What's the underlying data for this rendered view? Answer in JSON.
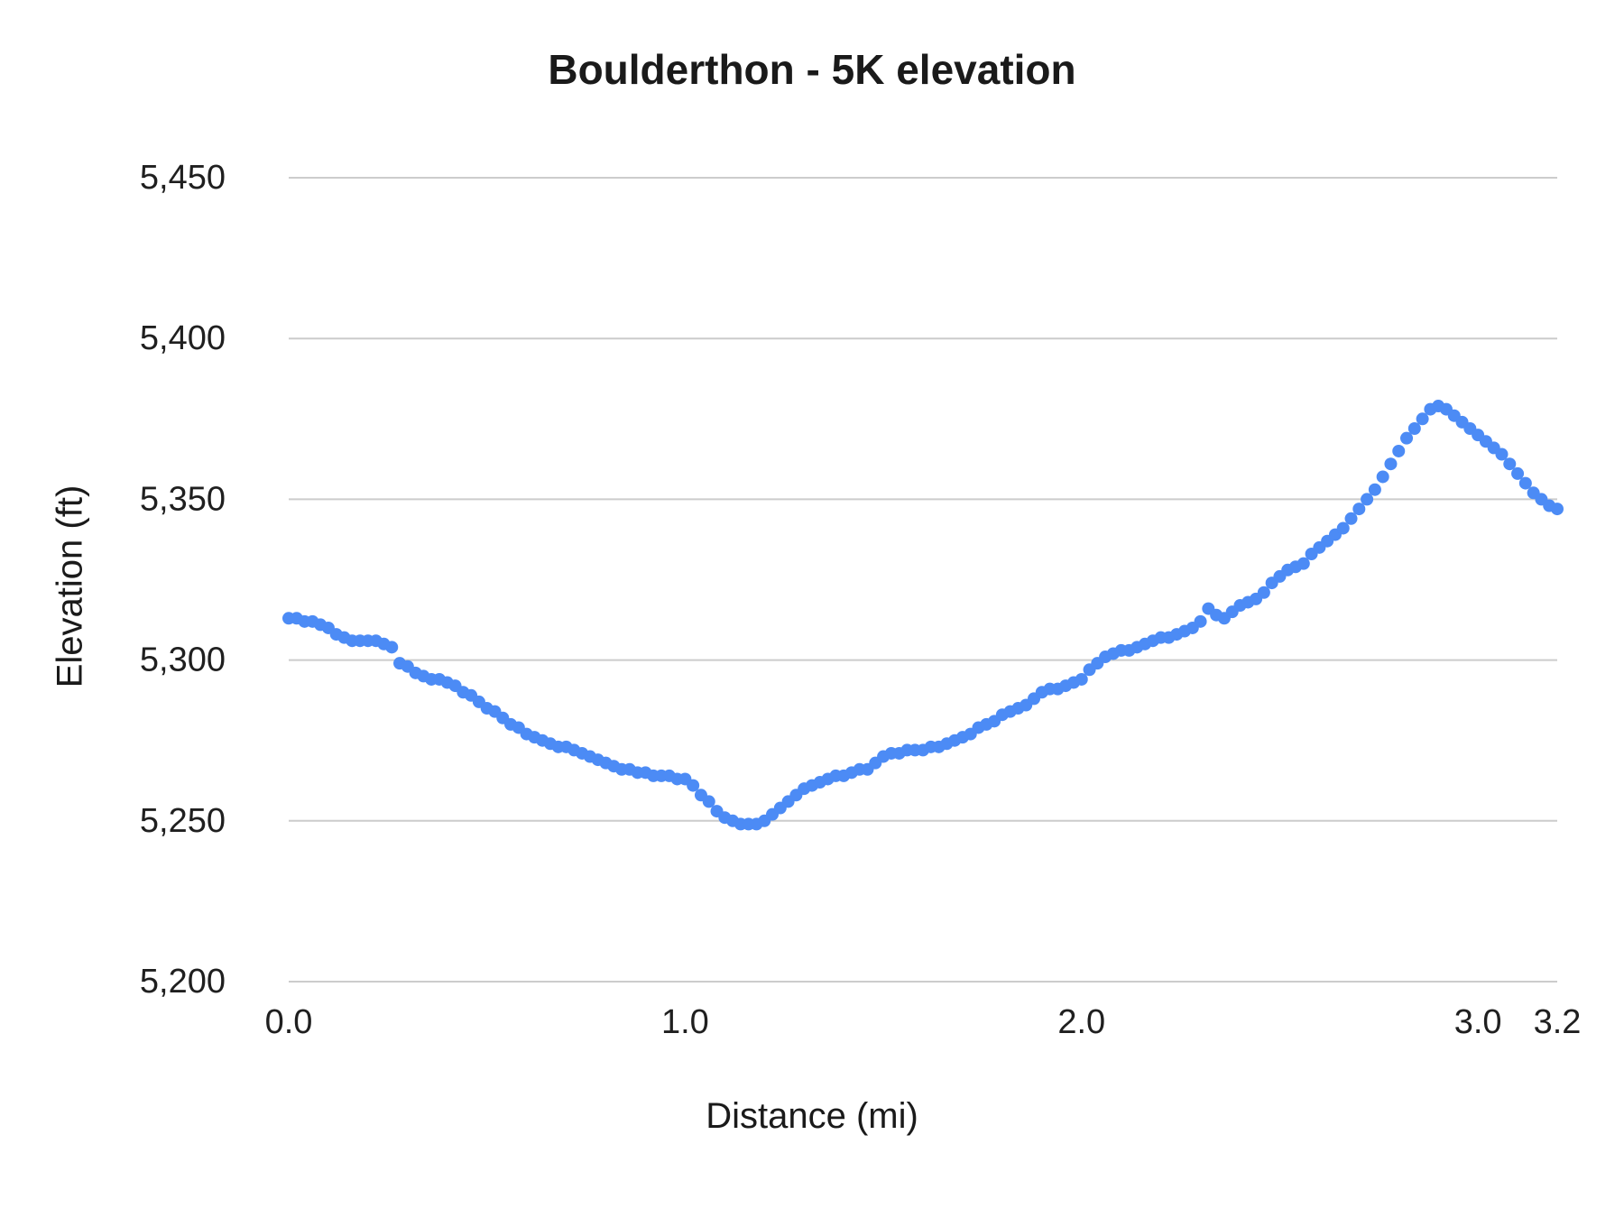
{
  "page": {
    "background": "#ffffff"
  },
  "chart_data": {
    "type": "scatter",
    "title": "Boulderthon - 5K elevation",
    "xlabel": "Distance (mi)",
    "ylabel": "Elevation (ft)",
    "xlim": [
      0,
      3.2
    ],
    "ylim": [
      5200,
      5450
    ],
    "grid": "horizontal",
    "legend": "none",
    "point_color": "#4c8bf5",
    "grid_color": "#cccccc",
    "text_color": "#1f1f1f",
    "x_ticks": [
      {
        "value": 0,
        "label": "0.0"
      },
      {
        "value": 1,
        "label": "1.0"
      },
      {
        "value": 2,
        "label": "2.0"
      },
      {
        "value": 3,
        "label": "3.0"
      },
      {
        "value": 3.2,
        "label": "3.2"
      }
    ],
    "y_ticks": [
      {
        "value": 5200,
        "label": "5,200"
      },
      {
        "value": 5250,
        "label": "5,250"
      },
      {
        "value": 5300,
        "label": "5,300"
      },
      {
        "value": 5350,
        "label": "5,350"
      },
      {
        "value": 5400,
        "label": "5,400"
      },
      {
        "value": 5450,
        "label": "5,450"
      }
    ],
    "series_name": "Elevation",
    "x": [
      0,
      0.02,
      0.04,
      0.06,
      0.08,
      0.1,
      0.12,
      0.14,
      0.16,
      0.18,
      0.2,
      0.22,
      0.24,
      0.26,
      0.28,
      0.3,
      0.32,
      0.34,
      0.36,
      0.38,
      0.4,
      0.42,
      0.44,
      0.46,
      0.48,
      0.5,
      0.52,
      0.54,
      0.56,
      0.58,
      0.6,
      0.62,
      0.64,
      0.66,
      0.68,
      0.7,
      0.72,
      0.74,
      0.76,
      0.78,
      0.8,
      0.82,
      0.84,
      0.86,
      0.88,
      0.9,
      0.92,
      0.94,
      0.96,
      0.98,
      1,
      1.02,
      1.04,
      1.06,
      1.08,
      1.1,
      1.12,
      1.14,
      1.16,
      1.18,
      1.2,
      1.22,
      1.24,
      1.26,
      1.28,
      1.3,
      1.32,
      1.34,
      1.36,
      1.38,
      1.4,
      1.42,
      1.44,
      1.46,
      1.48,
      1.5,
      1.52,
      1.54,
      1.56,
      1.58,
      1.6,
      1.62,
      1.64,
      1.66,
      1.68,
      1.7,
      1.72,
      1.74,
      1.76,
      1.78,
      1.8,
      1.82,
      1.84,
      1.86,
      1.88,
      1.9,
      1.92,
      1.94,
      1.96,
      1.98,
      2,
      2.02,
      2.04,
      2.06,
      2.08,
      2.1,
      2.12,
      2.14,
      2.16,
      2.18,
      2.2,
      2.22,
      2.24,
      2.26,
      2.28,
      2.3,
      2.32,
      2.34,
      2.36,
      2.38,
      2.4,
      2.42,
      2.44,
      2.46,
      2.48,
      2.5,
      2.52,
      2.54,
      2.56,
      2.58,
      2.6,
      2.62,
      2.64,
      2.66,
      2.68,
      2.7,
      2.72,
      2.74,
      2.76,
      2.78,
      2.8,
      2.82,
      2.84,
      2.86,
      2.88,
      2.9,
      2.92,
      2.94,
      2.96,
      2.98,
      3,
      3.02,
      3.04,
      3.06,
      3.08,
      3.1,
      3.12,
      3.14,
      3.16,
      3.18,
      3.2
    ],
    "y": [
      5313,
      5313,
      5312,
      5312,
      5311,
      5310,
      5308,
      5307,
      5306,
      5306,
      5306,
      5306,
      5305,
      5304,
      5299,
      5298,
      5296,
      5295,
      5294,
      5294,
      5293,
      5292,
      5290,
      5289,
      5287,
      5285,
      5284,
      5282,
      5280,
      5279,
      5277,
      5276,
      5275,
      5274,
      5273,
      5273,
      5272,
      5271,
      5270,
      5269,
      5268,
      5267,
      5266,
      5266,
      5265,
      5265,
      5264,
      5264,
      5264,
      5263,
      5263,
      5261,
      5258,
      5256,
      5253,
      5251,
      5250,
      5249,
      5249,
      5249,
      5250,
      5252,
      5254,
      5256,
      5258,
      5260,
      5261,
      5262,
      5263,
      5264,
      5264,
      5265,
      5266,
      5266,
      5268,
      5270,
      5271,
      5271,
      5272,
      5272,
      5272,
      5273,
      5273,
      5274,
      5275,
      5276,
      5277,
      5279,
      5280,
      5281,
      5283,
      5284,
      5285,
      5286,
      5288,
      5290,
      5291,
      5291,
      5292,
      5293,
      5294,
      5297,
      5299,
      5301,
      5302,
      5303,
      5303,
      5304,
      5305,
      5306,
      5307,
      5307,
      5308,
      5309,
      5310,
      5312,
      5316,
      5314,
      5313,
      5315,
      5317,
      5318,
      5319,
      5321,
      5324,
      5326,
      5328,
      5329,
      5330,
      5333,
      5335,
      5337,
      5339,
      5341,
      5344,
      5347,
      5350,
      5353,
      5357,
      5361,
      5365,
      5369,
      5372,
      5375,
      5378,
      5379,
      5378,
      5376,
      5374,
      5372,
      5370,
      5368,
      5366,
      5364,
      5361,
      5358,
      5355,
      5352,
      5350,
      5348,
      5347
    ]
  }
}
